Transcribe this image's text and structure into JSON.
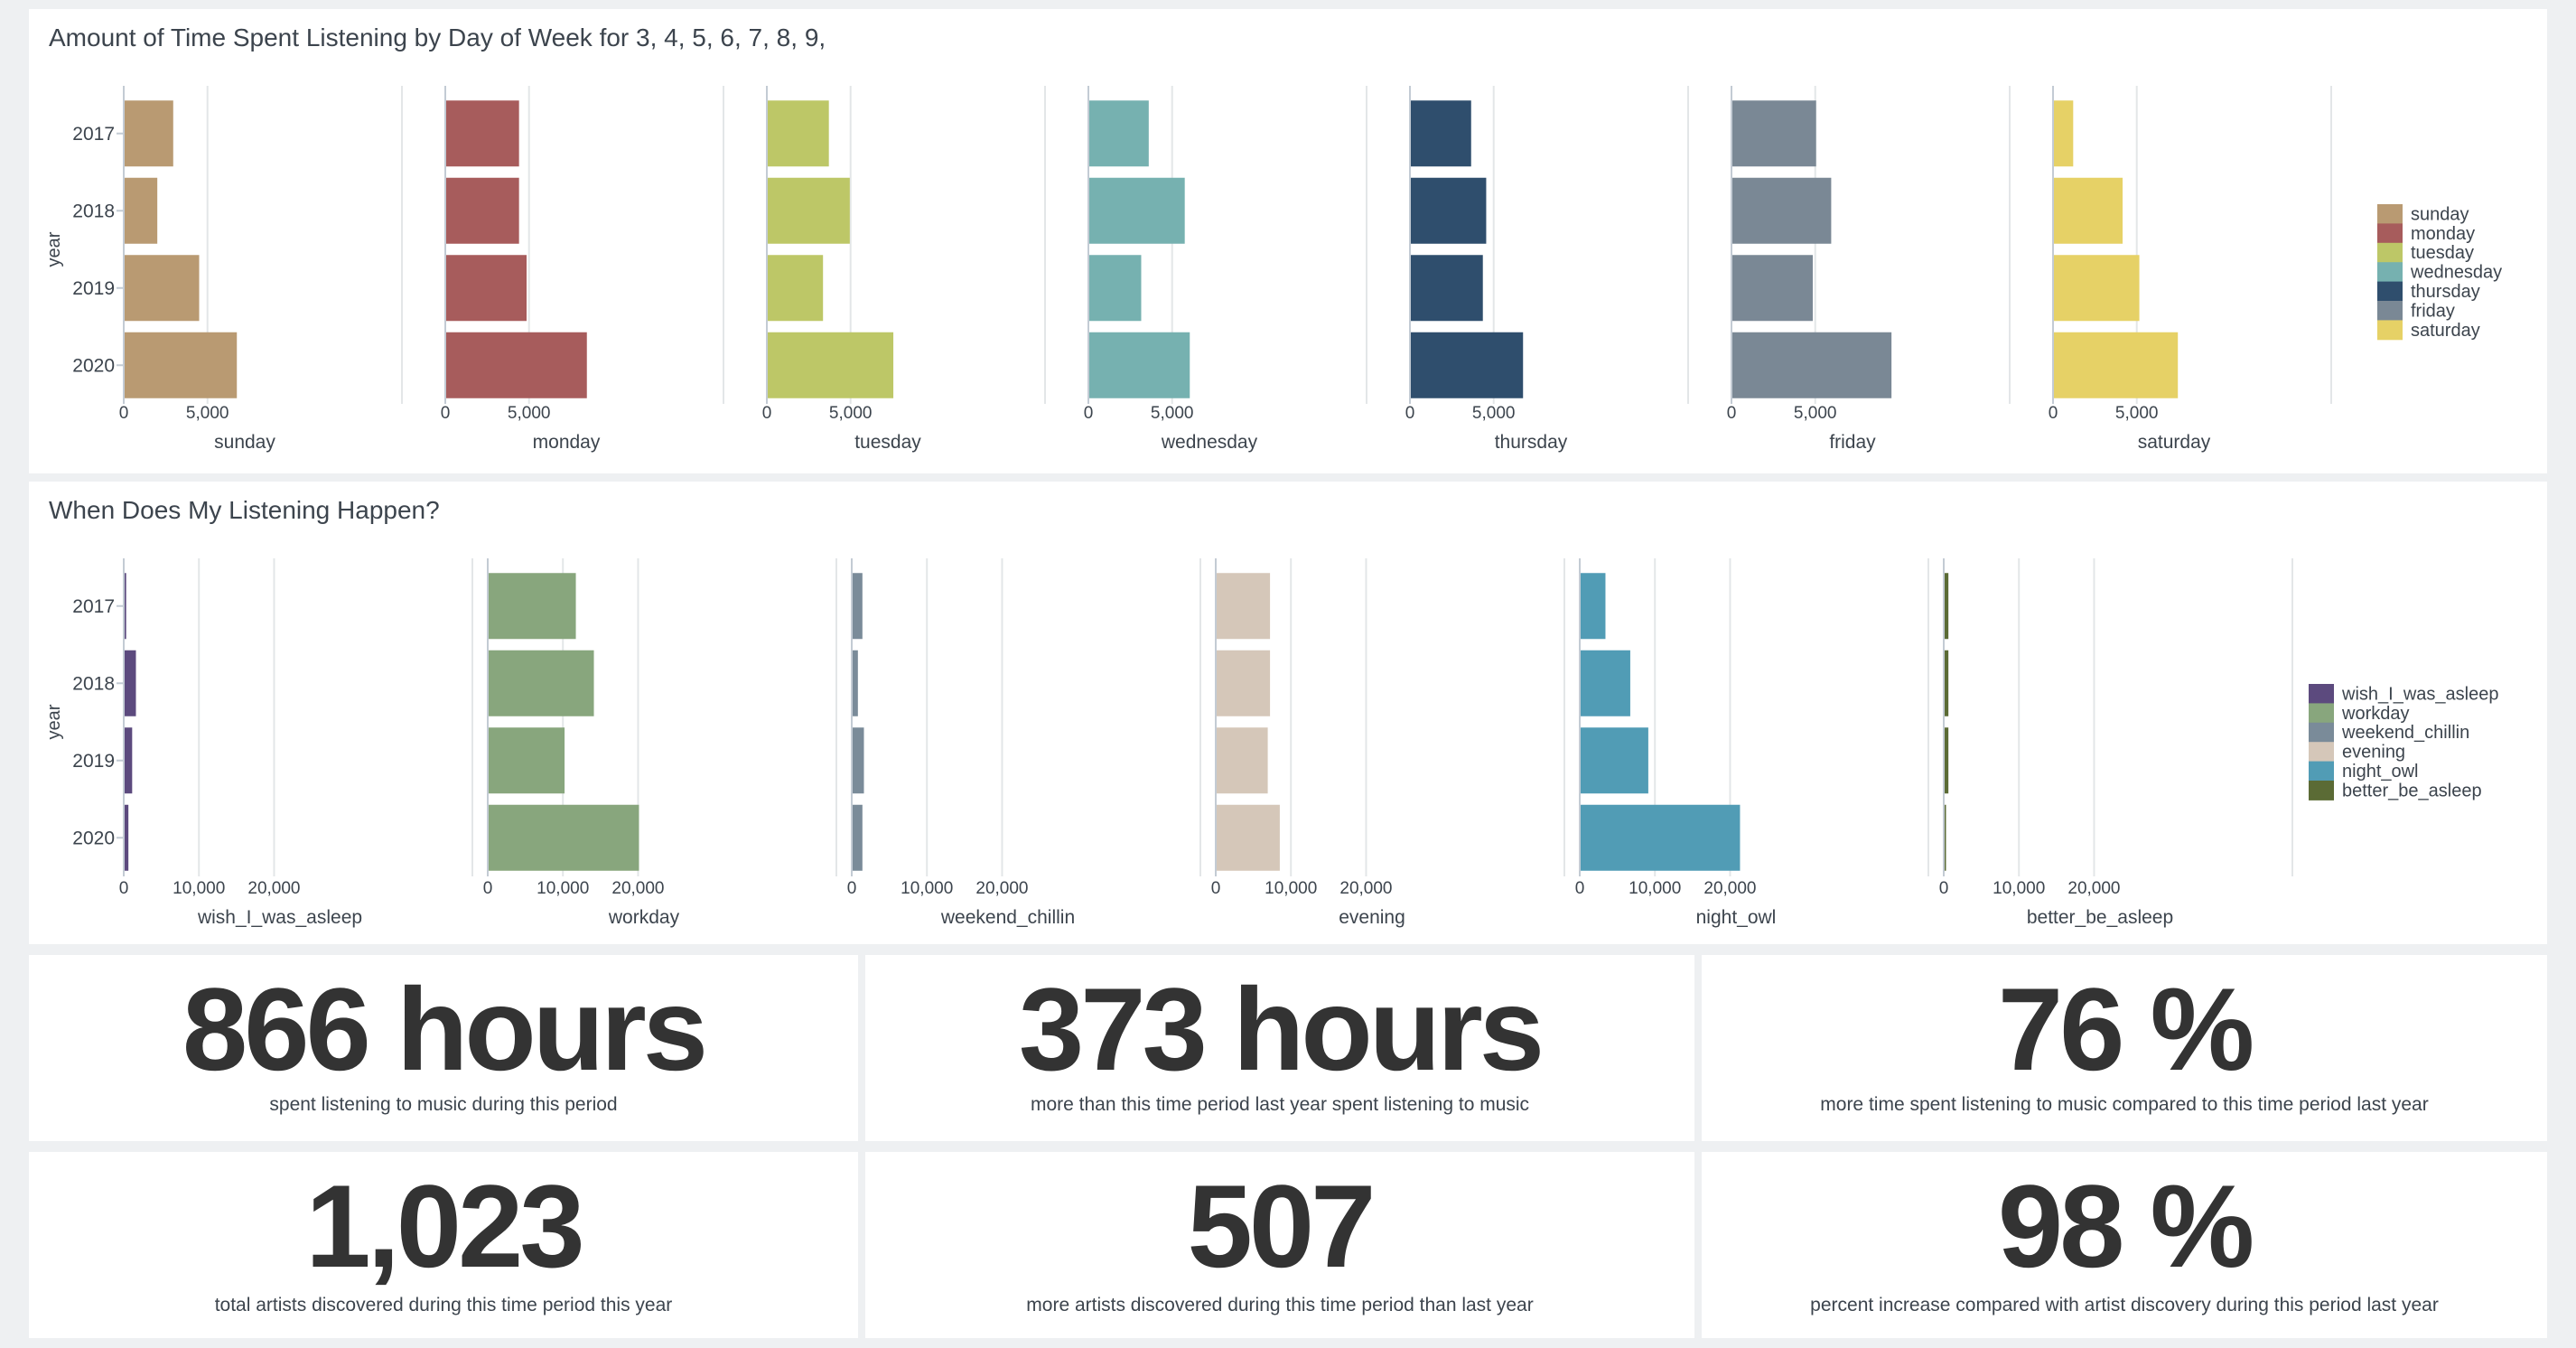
{
  "panels": {
    "day_of_week": {
      "title": "Amount of Time Spent Listening by Day of Week for 3, 4, 5, 6, 7, 8, 9,"
    },
    "time_of_day": {
      "title": "When Does My Listening Happen?"
    }
  },
  "chart_data": [
    {
      "type": "bar",
      "orientation": "horizontal",
      "layout": "trellis",
      "title": "Amount of Time Spent Listening by Day of Week for 3, 4, 5, 6, 7, 8, 9,",
      "ylabel": "year",
      "categories": [
        "2017",
        "2018",
        "2019",
        "2020"
      ],
      "xlim": [
        0,
        9600
      ],
      "xticks": [
        0,
        5000
      ],
      "xtick_labels": [
        "0",
        "5,000"
      ],
      "grid": true,
      "legend_position": "right",
      "series": [
        {
          "name": "sunday",
          "color": "#b99a72",
          "values": [
            2900,
            1950,
            4450,
            6700
          ]
        },
        {
          "name": "monday",
          "color": "#a75c5c",
          "values": [
            4350,
            4350,
            4800,
            8400
          ]
        },
        {
          "name": "tuesday",
          "color": "#bdc767",
          "values": [
            3650,
            4900,
            3300,
            7500
          ]
        },
        {
          "name": "wednesday",
          "color": "#76b1b0",
          "values": [
            3550,
            5700,
            3100,
            6000
          ]
        },
        {
          "name": "thursday",
          "color": "#2f4e6d",
          "values": [
            3600,
            4500,
            4300,
            6700
          ]
        },
        {
          "name": "friday",
          "color": "#7a8895",
          "values": [
            5000,
            5900,
            4800,
            9500
          ]
        },
        {
          "name": "saturday",
          "color": "#e6d166",
          "values": [
            1150,
            4100,
            5100,
            7400
          ]
        }
      ]
    },
    {
      "type": "bar",
      "orientation": "horizontal",
      "layout": "trellis",
      "title": "When Does My Listening Happen?",
      "ylabel": "year",
      "categories": [
        "2017",
        "2018",
        "2019",
        "2020"
      ],
      "xlim": [
        0,
        31000
      ],
      "xticks": [
        0,
        10000,
        20000
      ],
      "xtick_labels": [
        "0",
        "10,000",
        "20,000"
      ],
      "grid": true,
      "legend_position": "right",
      "series": [
        {
          "name": "wish_I_was_asleep",
          "color": "#5c4a7e",
          "values": [
            200,
            1500,
            1000,
            500
          ]
        },
        {
          "name": "workday",
          "color": "#88a67d",
          "values": [
            11600,
            14000,
            10100,
            20000
          ]
        },
        {
          "name": "weekend_chillin",
          "color": "#7a8b99",
          "values": [
            1300,
            700,
            1500,
            1300
          ]
        },
        {
          "name": "evening",
          "color": "#d5c7b9",
          "values": [
            7100,
            7100,
            6800,
            8400
          ]
        },
        {
          "name": "night_owl",
          "color": "#519cb5",
          "values": [
            3300,
            6600,
            9000,
            21200
          ]
        },
        {
          "name": "better_be_asleep",
          "color": "#5b6b35",
          "values": [
            500,
            500,
            500,
            100
          ]
        }
      ]
    }
  ],
  "single_values": [
    {
      "value": "866 hours",
      "label": "spent listening to music during this period"
    },
    {
      "value": "373 hours",
      "label": "more than this time period last year spent listening to music"
    },
    {
      "value": "76 %",
      "label": "more time spent listening to music compared to this time period last year"
    },
    {
      "value": "1,023",
      "label": "total artists discovered during this time period this year"
    },
    {
      "value": "507",
      "label": "more artists discovered during this time period than last year"
    },
    {
      "value": "98 %",
      "label": "percent increase compared with artist discovery during this period last year"
    }
  ]
}
